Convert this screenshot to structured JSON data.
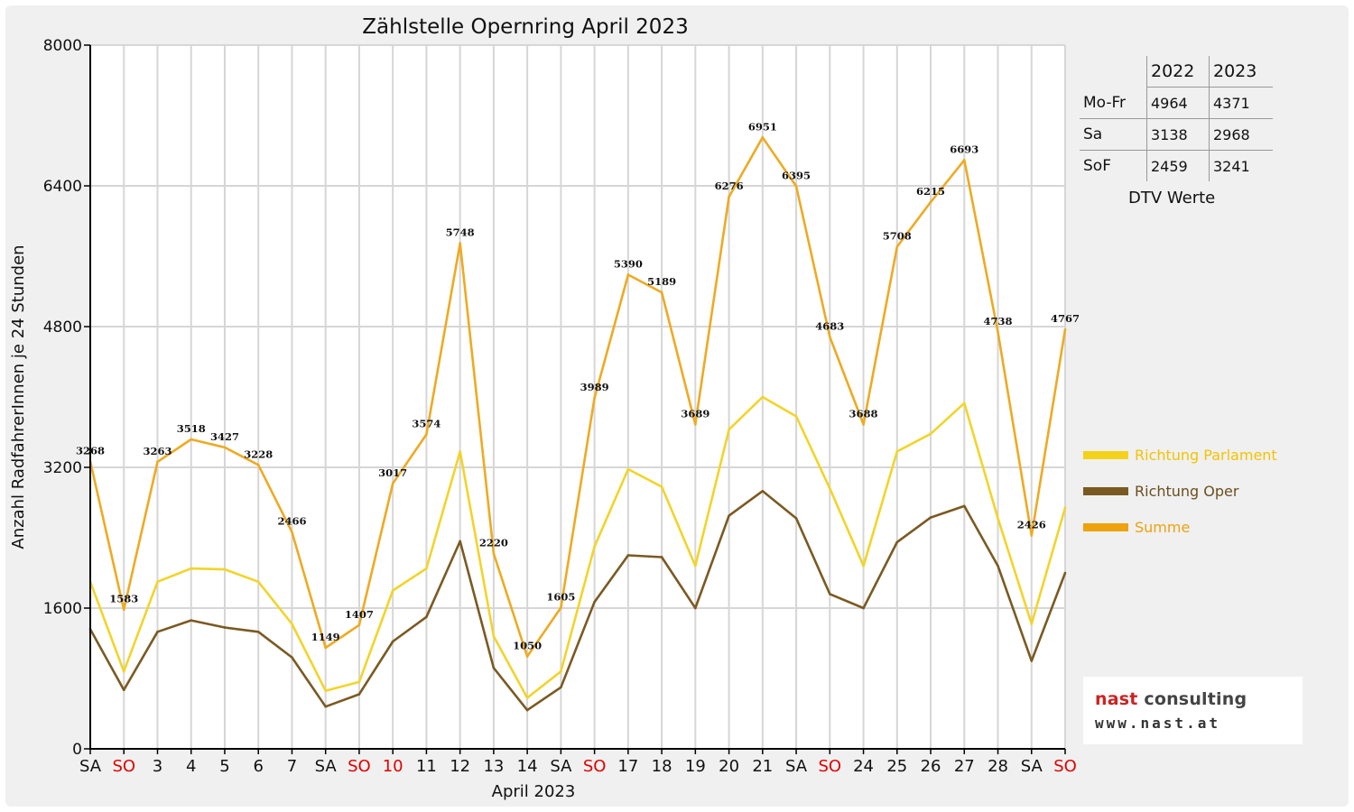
{
  "chart_data": {
    "type": "line",
    "title": "Zählstelle Opernring April 2023",
    "xlabel": "April 2023",
    "ylabel": "Anzahl RadfahrerInnen je 24 Stunden",
    "ylim": [
      0,
      8000
    ],
    "yticks": [
      "0",
      "1600",
      "3200",
      "4800",
      "6400",
      "8000"
    ],
    "categories": [
      "SA",
      "SO",
      "3",
      "4",
      "5",
      "6",
      "7",
      "SA",
      "SO",
      "10",
      "11",
      "12",
      "13",
      "14",
      "SA",
      "SO",
      "17",
      "18",
      "19",
      "20",
      "21",
      "SA",
      "SO",
      "24",
      "25",
      "26",
      "27",
      "28",
      "SA",
      "SO"
    ],
    "red_categories": [
      1,
      8,
      9,
      15,
      22,
      29
    ],
    "grid": true,
    "legend_position": "right",
    "series": [
      {
        "name": "Richtung Parlament",
        "color": "#f2d42a",
        "values": [
          1900,
          880,
          1900,
          2050,
          2040,
          1900,
          1420,
          660,
          760,
          1800,
          2050,
          3380,
          1280,
          580,
          880,
          2300,
          3180,
          2980,
          2080,
          3630,
          4000,
          3780,
          2960,
          2080,
          3380,
          3580,
          3930,
          2620,
          1420,
          2740
        ]
      },
      {
        "name": "Richtung Oper",
        "color": "#7a5a22",
        "values": [
          1360,
          670,
          1330,
          1460,
          1380,
          1330,
          1040,
          480,
          620,
          1220,
          1500,
          2360,
          920,
          440,
          700,
          1670,
          2200,
          2180,
          1600,
          2650,
          2930,
          2620,
          1760,
          1600,
          2350,
          2630,
          2760,
          2080,
          1000,
          2000
        ]
      },
      {
        "name": "Summe",
        "color": "#eeaa22",
        "values": [
          3268,
          1583,
          3263,
          3518,
          3427,
          3228,
          2466,
          1149,
          1407,
          3017,
          3574,
          5748,
          2220,
          1050,
          1605,
          3989,
          5390,
          5189,
          3689,
          6276,
          6951,
          6395,
          4683,
          3688,
          5708,
          6215,
          6693,
          4738,
          2426,
          4767
        ],
        "labels": [
          "3268",
          "1583",
          "3263",
          "3518",
          "3427",
          "3228",
          "2466",
          "1149",
          "1407",
          "3017",
          "3574",
          "5748",
          "2220",
          "1050",
          "1605",
          "3989",
          "5390",
          "5189",
          "3689",
          "6276",
          "6951",
          "6395",
          "4683",
          "3688",
          "5708",
          "6215",
          "6693",
          "4738",
          "2426",
          "4767"
        ]
      }
    ]
  },
  "dtv": {
    "caption": "DTV Werte",
    "columns": [
      "2022",
      "2023"
    ],
    "rows": [
      {
        "label": "Mo-Fr",
        "v2022": "4964",
        "v2023": "4371"
      },
      {
        "label": "Sa",
        "v2022": "3138",
        "v2023": "2968"
      },
      {
        "label": "SoF",
        "v2022": "2459",
        "v2023": "3241"
      }
    ]
  },
  "logo": {
    "line1a": "nast",
    "line1b": " consulting",
    "line2": "www.nast.at"
  },
  "colors": {
    "red_day": "#e00000",
    "grid": "#d8d8d8"
  }
}
